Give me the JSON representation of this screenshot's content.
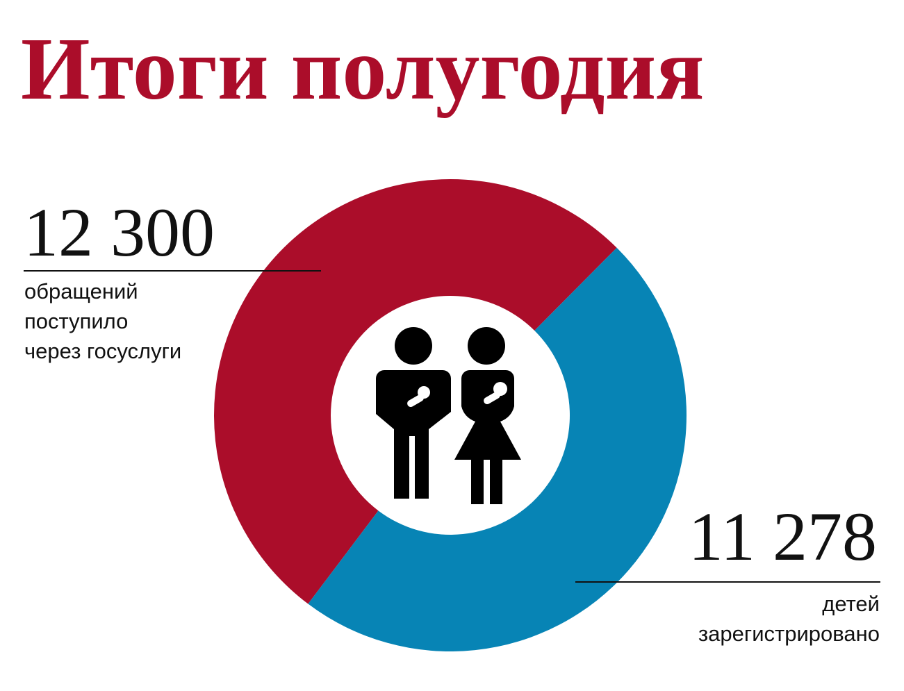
{
  "chart_data": {
    "type": "donut",
    "title": "Итоги полугодия",
    "categories": [
      [
        "обращений",
        "поступило",
        "через госуслуги"
      ],
      [
        "детей",
        "зарегистрировано"
      ]
    ],
    "values": [
      12300,
      11278
    ],
    "value_labels": [
      "12 300",
      "11 278"
    ],
    "colors": [
      "#ab0d2a",
      "#0784b5"
    ]
  }
}
